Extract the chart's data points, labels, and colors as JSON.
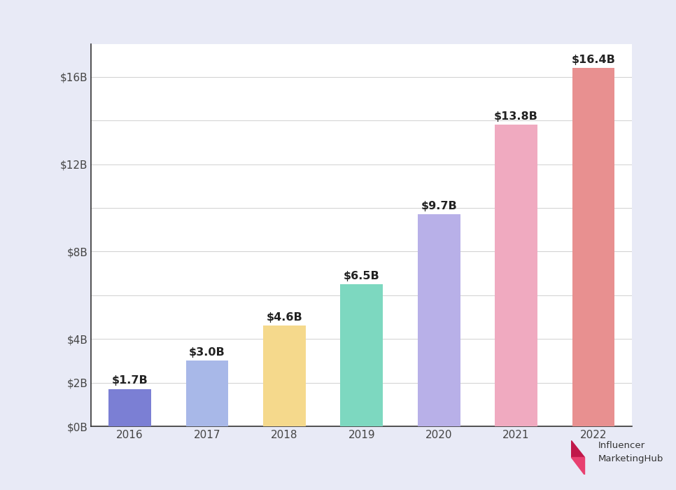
{
  "years": [
    "2016",
    "2017",
    "2018",
    "2019",
    "2020",
    "2021",
    "2022"
  ],
  "values": [
    1.7,
    3.0,
    4.6,
    6.5,
    9.7,
    13.8,
    16.4
  ],
  "labels": [
    "$1.7B",
    "$3.0B",
    "$4.6B",
    "$6.5B",
    "$9.7B",
    "$13.8B",
    "$16.4B"
  ],
  "bar_colors": [
    "#7b7fd4",
    "#a8b8e8",
    "#f5d98c",
    "#7dd8c0",
    "#b8b0e8",
    "#f0aac0",
    "#e89090"
  ],
  "background_color": "#e8eaf6",
  "plot_bg_color": "#ffffff",
  "yticks": [
    0,
    2,
    4,
    8,
    12,
    16
  ],
  "ytick_labels": [
    "$0B",
    "$2B",
    "$4B",
    "$8B",
    "$12B",
    "$16B"
  ],
  "grid_yticks": [
    0,
    2,
    4,
    6,
    8,
    10,
    12,
    14,
    16
  ],
  "ylim": [
    0,
    17.5
  ],
  "grid_color": "#d0d0d0",
  "label_fontsize": 11.5,
  "tick_fontsize": 11,
  "bar_width": 0.55,
  "logo_text_color": "#333333",
  "spine_color": "#333333"
}
